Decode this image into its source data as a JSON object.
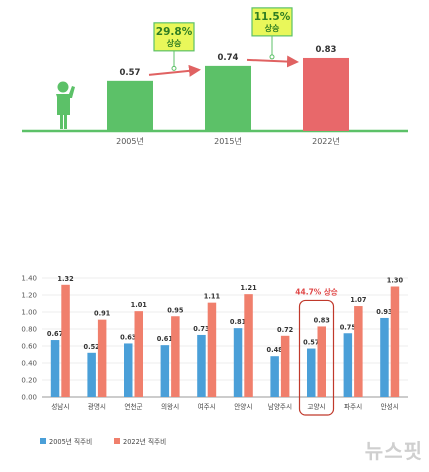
{
  "chart_data": [
    {
      "type": "bar",
      "categories": [
        "2005년",
        "2015년",
        "2022년"
      ],
      "values": [
        0.57,
        0.74,
        0.83
      ],
      "colors": [
        "#5cc168",
        "#5cc168",
        "#e8686a"
      ],
      "annotations": [
        {
          "from": "2005년",
          "to": "2015년",
          "value": "29.8%",
          "label": "상승"
        },
        {
          "from": "2015년",
          "to": "2022년",
          "value": "11.5%",
          "label": "상승"
        }
      ]
    },
    {
      "type": "bar",
      "categories": [
        "성남시",
        "광명시",
        "연천군",
        "의왕시",
        "여주시",
        "안양시",
        "남양주시",
        "고양시",
        "파주시",
        "안성시"
      ],
      "series": [
        {
          "name": "2005년 직주비",
          "color": "#4a9fd8",
          "values": [
            0.67,
            0.52,
            0.63,
            0.61,
            0.73,
            0.81,
            0.48,
            0.57,
            0.75,
            0.93
          ]
        },
        {
          "name": "2022년 직주비",
          "color": "#f07f6c",
          "values": [
            1.32,
            0.91,
            1.01,
            0.95,
            1.11,
            1.21,
            0.72,
            0.83,
            1.07,
            1.3
          ]
        }
      ],
      "ylim": [
        0,
        1.4
      ],
      "yticks": [
        "0.00",
        "0.20",
        "0.40",
        "0.60",
        "0.80",
        "1.00",
        "1.20",
        "1.40"
      ],
      "annotation": {
        "category": "고양시",
        "text": "44.7% 상승"
      },
      "legend_position": "bottom-left"
    }
  ],
  "watermark": "뉴스핏"
}
